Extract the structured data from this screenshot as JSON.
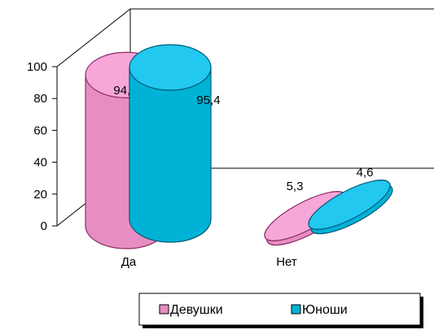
{
  "chart_data": {
    "type": "bar",
    "style": "3d-cylinder",
    "categories": [
      "Да",
      "Нет"
    ],
    "series": [
      {
        "name": "Девушки",
        "values": [
          94.7,
          5.3
        ],
        "labels": [
          "94,7",
          "5,3"
        ],
        "color": "#e68ec3",
        "top_color": "#f7a6d8",
        "edge_color": "#8a2e66"
      },
      {
        "name": "Юноши",
        "values": [
          95.4,
          4.6
        ],
        "labels": [
          "95,4",
          "4,6"
        ],
        "color": "#00b3d6",
        "top_color": "#22c8ef",
        "edge_color": "#005a77"
      }
    ],
    "y_ticks": [
      "0",
      "20",
      "40",
      "60",
      "80",
      "100"
    ],
    "ylim": [
      0,
      100
    ],
    "legend": "bottom-right",
    "grid": false
  }
}
